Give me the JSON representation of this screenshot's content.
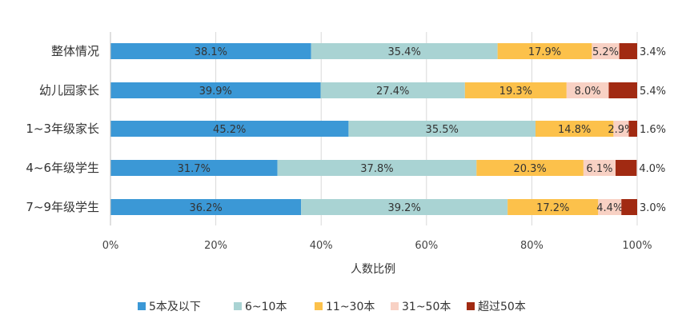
{
  "chart_data": {
    "type": "bar",
    "orientation": "horizontal",
    "stacked": "percent",
    "categories": [
      "整体情况",
      "幼儿园家长",
      "1~3年级家长",
      "4~6年级学生",
      "7~9年级学生"
    ],
    "series": [
      {
        "name": "5本及以下",
        "color": "#3b98d6",
        "values": [
          38.1,
          39.9,
          45.2,
          31.7,
          36.2
        ],
        "labels": [
          "38.1%",
          "39.9%",
          "45.2%",
          "31.7%",
          "36.2%"
        ]
      },
      {
        "name": "6~10本",
        "color": "#a9d3d3",
        "values": [
          35.4,
          27.4,
          35.5,
          37.8,
          39.2
        ],
        "labels": [
          "35.4%",
          "27.4%",
          "35.5%",
          "37.8%",
          "39.2%"
        ]
      },
      {
        "name": "11~30本",
        "color": "#fcc14b",
        "values": [
          17.9,
          19.3,
          14.8,
          20.3,
          17.2
        ],
        "labels": [
          "17.9%",
          "19.3%",
          "14.8%",
          "20.3%",
          "17.2%"
        ]
      },
      {
        "name": "31~50本",
        "color": "#f8d1c4",
        "values": [
          5.2,
          8.0,
          2.9,
          6.1,
          4.4
        ],
        "labels": [
          "5.2%",
          "8.0%",
          "2.9%",
          "6.1%",
          "4.4%"
        ]
      },
      {
        "name": "超过50本",
        "color": "#a12a12",
        "values": [
          3.4,
          5.4,
          1.6,
          4.0,
          3.0
        ],
        "labels": [
          "3.4%",
          "5.4%",
          "1.6%",
          "4.0%",
          "3.0%"
        ]
      }
    ],
    "xlim": [
      0,
      100
    ],
    "xticks": [
      "0%",
      "20%",
      "40%",
      "60%",
      "80%",
      "100%"
    ],
    "xlabel": "人数比例",
    "legend_position": "bottom",
    "grid": "vertical"
  }
}
